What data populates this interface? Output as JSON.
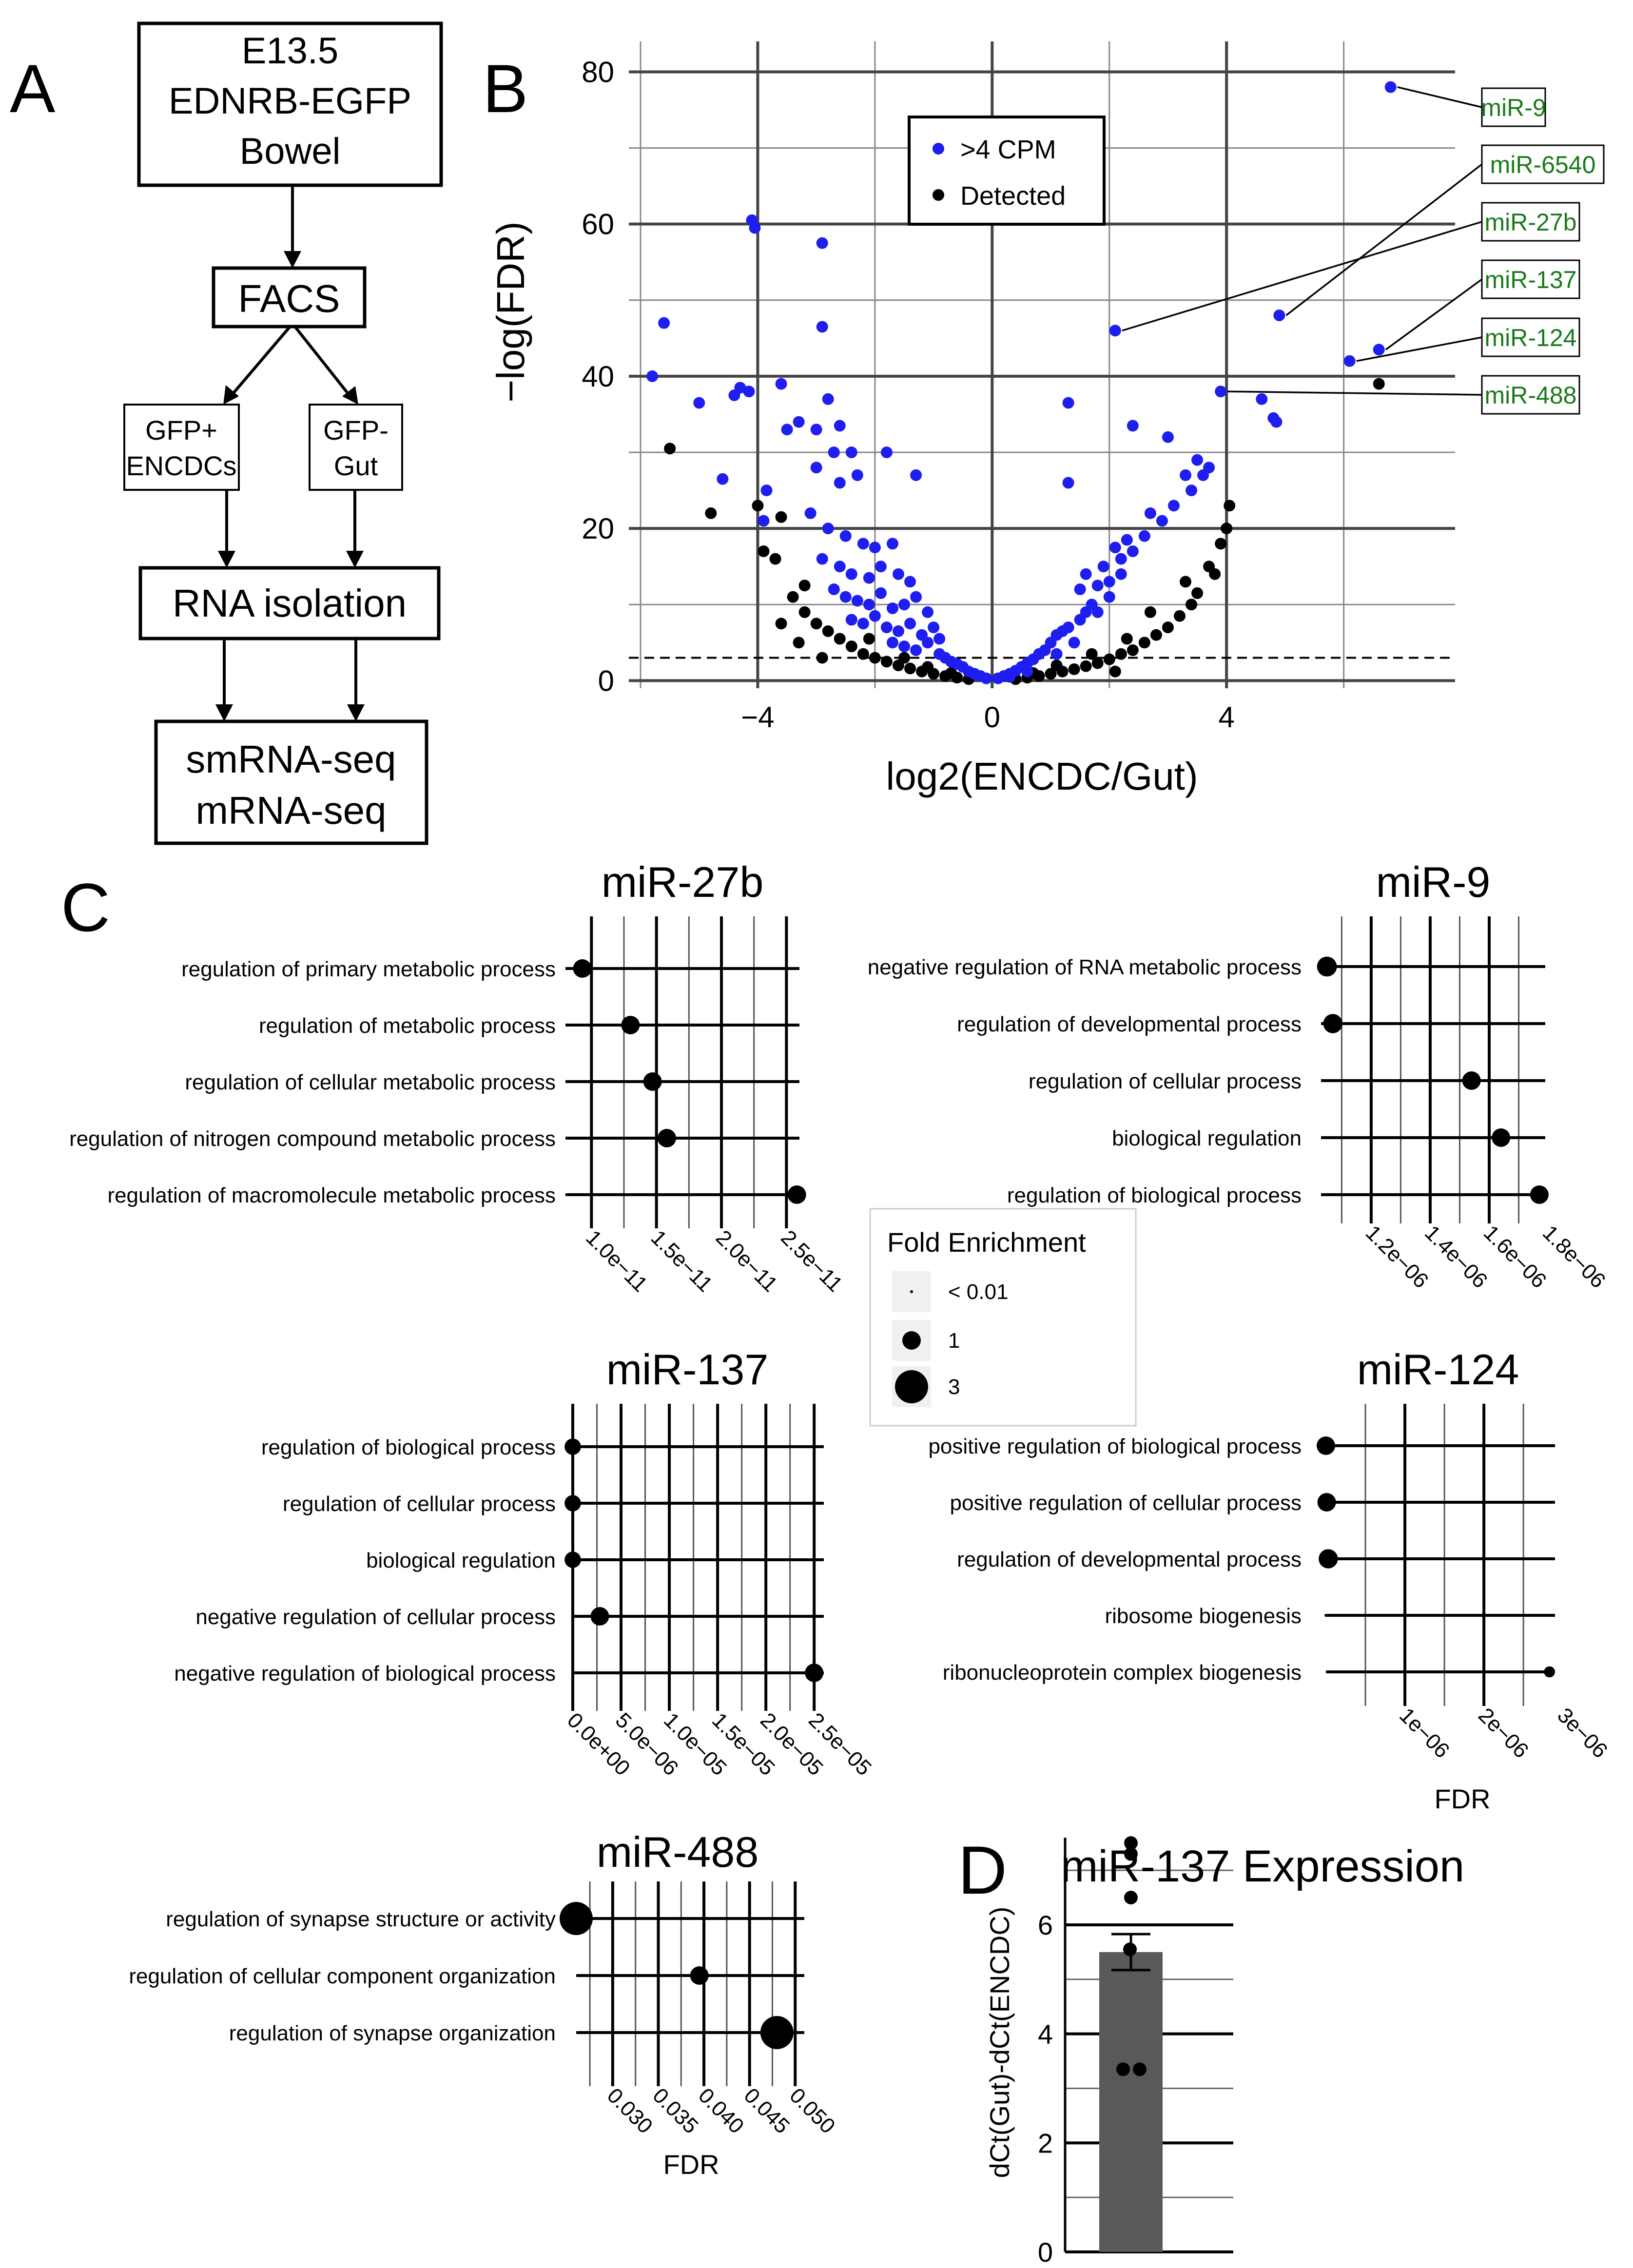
{
  "panels": {
    "a": "A",
    "b": "B",
    "c": "C",
    "d": "D"
  },
  "flowchart": {
    "start_lines": [
      "E13.5",
      "EDNRB-EGFP",
      "Bowel"
    ],
    "facs": "FACS",
    "gfp_pos_lines": [
      "GFP+",
      "ENCDCs"
    ],
    "gfp_neg_lines": [
      "GFP-",
      "Gut"
    ],
    "rna_isolation": "RNA isolation",
    "seq_lines": [
      "smRNA-seq",
      "mRNA-seq"
    ]
  },
  "colors": {
    "blue": "#1e1ef0",
    "black": "#000000",
    "green_label": "#1a7a1a",
    "bar_fill": "#595959"
  },
  "chart_data": [
    {
      "id": "volcano",
      "type": "scatter",
      "title": "",
      "xlabel": "log2(ENCDC/Gut)",
      "ylabel": "−log(FDR)",
      "xlim": [
        -6.2,
        7.9
      ],
      "ylim": [
        -1,
        84
      ],
      "xticks": [
        -4,
        0,
        4
      ],
      "xtick_labels": [
        "−4",
        "0",
        "4"
      ],
      "yticks": [
        0,
        20,
        40,
        60,
        80
      ],
      "ytick_labels": [
        "0",
        "20",
        "40",
        "60",
        "80"
      ],
      "threshold_y": 3,
      "legend": {
        "position": "top-center",
        "entries": [
          ">4 CPM",
          "Detected"
        ]
      },
      "labels": [
        {
          "text": "miR-9",
          "x": 6.8,
          "y": 78
        },
        {
          "text": "miR-6540",
          "x": 4.9,
          "y": 48
        },
        {
          "text": "miR-27b",
          "x": 2.1,
          "y": 46
        },
        {
          "text": "miR-137",
          "x": 6.6,
          "y": 43.5
        },
        {
          "text": "miR-124",
          "x": 6.1,
          "y": 42
        },
        {
          "text": "miR-488",
          "x": 3.9,
          "y": 38
        }
      ],
      "series": [
        {
          "name": ">4 CPM",
          "points": [
            [
              6.8,
              78
            ],
            [
              4.9,
              48
            ],
            [
              2.1,
              46
            ],
            [
              6.6,
              43.5
            ],
            [
              6.1,
              42
            ],
            [
              3.9,
              38
            ],
            [
              -4.1,
              60.5
            ],
            [
              -4.05,
              59.5
            ],
            [
              -2.9,
              57.5
            ],
            [
              -5.6,
              47
            ],
            [
              -2.9,
              46.5
            ],
            [
              -5.8,
              40
            ],
            [
              -4.3,
              38.5
            ],
            [
              -4.15,
              38
            ],
            [
              -4.4,
              37.5
            ],
            [
              -3.6,
              39
            ],
            [
              -5.0,
              36.5
            ],
            [
              -2.8,
              37
            ],
            [
              -3.3,
              34
            ],
            [
              -3.5,
              33
            ],
            [
              -2.6,
              33.5
            ],
            [
              -3.0,
              33
            ],
            [
              -2.7,
              30
            ],
            [
              -2.4,
              30
            ],
            [
              -1.8,
              30
            ],
            [
              -4.6,
              26.5
            ],
            [
              -3.85,
              25
            ],
            [
              -3.9,
              21
            ],
            [
              -3.0,
              28
            ],
            [
              -2.6,
              26
            ],
            [
              -2.3,
              27
            ],
            [
              -1.3,
              27
            ],
            [
              -3.1,
              22
            ],
            [
              -2.8,
              20
            ],
            [
              -2.5,
              19
            ],
            [
              -2.2,
              18
            ],
            [
              -2.0,
              17.5
            ],
            [
              -1.7,
              18
            ],
            [
              -2.9,
              16
            ],
            [
              -2.6,
              15
            ],
            [
              -2.4,
              14
            ],
            [
              -2.1,
              13.5
            ],
            [
              -1.9,
              15
            ],
            [
              -1.6,
              14
            ],
            [
              -1.4,
              13
            ],
            [
              -2.7,
              12
            ],
            [
              -2.5,
              11
            ],
            [
              -2.3,
              10.5
            ],
            [
              -2.1,
              10
            ],
            [
              -1.9,
              11.5
            ],
            [
              -1.7,
              9.5
            ],
            [
              -1.5,
              10
            ],
            [
              -1.3,
              11
            ],
            [
              -1.1,
              9
            ],
            [
              -2.4,
              8
            ],
            [
              -2.2,
              7.5
            ],
            [
              -2.0,
              8.5
            ],
            [
              -1.8,
              7
            ],
            [
              -1.6,
              6.5
            ],
            [
              -1.4,
              7.5
            ],
            [
              -1.2,
              6
            ],
            [
              -1.0,
              7
            ],
            [
              -0.9,
              5.5
            ],
            [
              -1.7,
              5
            ],
            [
              -1.5,
              4.5
            ],
            [
              -1.3,
              4
            ],
            [
              -1.1,
              5
            ],
            [
              -0.9,
              3.5
            ],
            [
              -0.8,
              3
            ],
            [
              -0.7,
              2.5
            ],
            [
              -0.6,
              2.2
            ],
            [
              -0.5,
              1.8
            ],
            [
              -0.4,
              1.2
            ],
            [
              -0.3,
              0.9
            ],
            [
              -0.2,
              0.6
            ],
            [
              -0.1,
              0.3
            ],
            [
              0.1,
              0.3
            ],
            [
              0.2,
              0.6
            ],
            [
              0.3,
              0.9
            ],
            [
              0.4,
              1.3
            ],
            [
              0.5,
              1.8
            ],
            [
              0.6,
              2.3
            ],
            [
              0.7,
              2.8
            ],
            [
              0.8,
              3.5
            ],
            [
              0.9,
              4
            ],
            [
              1.0,
              5
            ],
            [
              1.1,
              6
            ],
            [
              1.2,
              6.5
            ],
            [
              1.3,
              7
            ],
            [
              1.5,
              8
            ],
            [
              1.6,
              9
            ],
            [
              1.7,
              10
            ],
            [
              1.5,
              12
            ],
            [
              1.8,
              12.5
            ],
            [
              1.6,
              14
            ],
            [
              1.9,
              15
            ],
            [
              2.0,
              13
            ],
            [
              2.2,
              14
            ],
            [
              2.4,
              17
            ],
            [
              2.1,
              17.5
            ],
            [
              2.3,
              18.5
            ],
            [
              2.6,
              19
            ],
            [
              2.9,
              21
            ],
            [
              2.7,
              22
            ],
            [
              3.1,
              23
            ],
            [
              3.4,
              25
            ],
            [
              3.3,
              27
            ],
            [
              3.6,
              27
            ],
            [
              3.5,
              29
            ],
            [
              3.0,
              32
            ],
            [
              2.4,
              33.5
            ],
            [
              1.3,
              36.5
            ],
            [
              1.3,
              26
            ],
            [
              4.6,
              37
            ],
            [
              4.8,
              34.5
            ],
            [
              4.85,
              34
            ],
            [
              3.7,
              28
            ],
            [
              2.2,
              16
            ],
            [
              2.0,
              11
            ],
            [
              1.8,
              9
            ],
            [
              1.4,
              5
            ],
            [
              1.1,
              3.5
            ],
            [
              0.6,
              1.2
            ],
            [
              0.3,
              0.5
            ]
          ]
        },
        {
          "name": "Detected",
          "points": [
            [
              6.6,
              39
            ],
            [
              -5.5,
              30.5
            ],
            [
              -4.8,
              22
            ],
            [
              -4.0,
              23
            ],
            [
              -3.6,
              21.5
            ],
            [
              -3.9,
              17
            ],
            [
              -3.7,
              16
            ],
            [
              -3.2,
              12.5
            ],
            [
              -3.4,
              11
            ],
            [
              -3.2,
              9
            ],
            [
              -3.0,
              7.5
            ],
            [
              -2.8,
              6.5
            ],
            [
              -2.6,
              5.5
            ],
            [
              -2.4,
              4.5
            ],
            [
              -2.2,
              3.5
            ],
            [
              -2.0,
              3
            ],
            [
              -1.8,
              2.5
            ],
            [
              -1.6,
              2
            ],
            [
              -1.4,
              1.6
            ],
            [
              -1.2,
              1.2
            ],
            [
              -1.0,
              0.9
            ],
            [
              -0.8,
              0.6
            ],
            [
              -0.6,
              0.4
            ],
            [
              -0.4,
              0.2
            ],
            [
              0.4,
              0.2
            ],
            [
              0.6,
              0.4
            ],
            [
              0.8,
              0.6
            ],
            [
              1.0,
              0.9
            ],
            [
              1.2,
              1.2
            ],
            [
              1.4,
              1.5
            ],
            [
              1.6,
              1.9
            ],
            [
              1.8,
              2.3
            ],
            [
              2.0,
              2.8
            ],
            [
              2.2,
              3.5
            ],
            [
              2.4,
              4
            ],
            [
              2.6,
              5
            ],
            [
              2.8,
              6
            ],
            [
              3.0,
              7
            ],
            [
              3.2,
              8.5
            ],
            [
              3.4,
              10
            ],
            [
              3.5,
              11.5
            ],
            [
              3.7,
              15
            ],
            [
              3.9,
              18
            ],
            [
              4.0,
              20
            ],
            [
              4.05,
              23
            ],
            [
              3.8,
              14
            ],
            [
              3.3,
              13
            ],
            [
              2.7,
              9
            ],
            [
              2.3,
              5.5
            ],
            [
              2.1,
              1.2
            ],
            [
              1.7,
              3.5
            ],
            [
              -2.9,
              3
            ],
            [
              -3.3,
              5
            ],
            [
              -3.6,
              7.5
            ],
            [
              -2.1,
              5.5
            ],
            [
              -1.5,
              3
            ],
            [
              -1.1,
              1.8
            ],
            [
              -0.7,
              1
            ],
            [
              0.7,
              1
            ],
            [
              1.1,
              2
            ]
          ]
        }
      ]
    },
    {
      "id": "mir27b",
      "type": "dot",
      "title": "miR-27b",
      "xlabel": "",
      "xlim": [
        8e-12,
        2.6e-11
      ],
      "xticks": [
        1e-11,
        1.5e-11,
        2e-11,
        2.5e-11
      ],
      "xtick_labels": [
        "1.0e−11",
        "1.5e−11",
        "2.0e−11",
        "2.5e−11"
      ],
      "categories": [
        "regulation of primary metabolic process",
        "regulation of metabolic process",
        "regulation of cellular metabolic process",
        "regulation of nitrogen compound metabolic process",
        "regulation of macromolecule metabolic process"
      ],
      "values": [
        9.3e-12,
        1.3e-11,
        1.47e-11,
        1.58e-11,
        2.58e-11
      ],
      "fold_enrichment": [
        1,
        1,
        1,
        1,
        1
      ]
    },
    {
      "id": "mir9",
      "type": "dot",
      "title": "miR-9",
      "xlabel": "",
      "xlim": [
        1.03e-06,
        1.79e-06
      ],
      "xticks": [
        1.2e-06,
        1.4e-06,
        1.6e-06,
        1.8e-06
      ],
      "xtick_labels": [
        "1.2e−06",
        "1.4e−06",
        "1.6e−06",
        "1.8e−06"
      ],
      "categories": [
        "negative regulation of RNA metabolic process",
        "regulation of developmental process",
        "regulation of cellular process",
        "biological regulation",
        "regulation of biological process"
      ],
      "values": [
        1.05e-06,
        1.07e-06,
        1.54e-06,
        1.64e-06,
        1.77e-06
      ],
      "fold_enrichment": [
        1.2,
        1.1,
        1,
        1,
        1
      ]
    },
    {
      "id": "mir137",
      "type": "dot",
      "title": "miR-137",
      "xlabel": "",
      "xlim": [
        0,
        2.6e-05
      ],
      "xticks": [
        0,
        5e-06,
        1e-05,
        1.5e-05,
        2e-05,
        2.5e-05
      ],
      "xtick_labels": [
        "0.0e+00",
        "5.0e−06",
        "1.0e−05",
        "1.5e−05",
        "2.0e−05",
        "2.5e−05"
      ],
      "categories": [
        "regulation of biological process",
        "regulation of cellular process",
        "biological regulation",
        "negative regulation of cellular process",
        "negative regulation of biological process"
      ],
      "values": [
        0.0,
        0.0,
        0.0,
        2.8e-06,
        2.5e-05
      ],
      "fold_enrichment": [
        0.8,
        0.8,
        0.8,
        1,
        1
      ]
    },
    {
      "id": "mir124",
      "type": "dot",
      "title": "miR-124",
      "xlabel": "FDR",
      "xlim": [
        0,
        2.9e-06
      ],
      "xticks": [
        1e-06,
        2e-06,
        3e-06
      ],
      "xtick_labels": [
        "1e−06",
        "2e−06",
        "3e−06"
      ],
      "categories": [
        "positive regulation of biological process",
        "positive regulation of cellular process",
        "regulation of developmental process",
        "ribosome biogenesis",
        "ribonucleoprotein complex biogenesis"
      ],
      "values": [
        0.0,
        1e-08,
        3e-08,
        0.0,
        2.83e-06
      ],
      "fold_enrichment": [
        1,
        1,
        1.1,
        0.005,
        0.3
      ]
    },
    {
      "id": "mir488",
      "type": "dot",
      "title": "miR-488",
      "xlabel": "FDR",
      "xlim": [
        0.026,
        0.051
      ],
      "xticks": [
        0.03,
        0.035,
        0.04,
        0.045,
        0.05
      ],
      "xtick_labels": [
        "0.030",
        "0.035",
        "0.040",
        "0.045",
        "0.050"
      ],
      "categories": [
        "regulation of synapse structure or activity",
        "regulation of cellular component organization",
        "regulation of synapse organization"
      ],
      "values": [
        0.026,
        0.0395,
        0.048
      ],
      "fold_enrichment": [
        3,
        1,
        3
      ]
    },
    {
      "id": "fold_legend",
      "type": "legend",
      "title": "Fold Enrichment",
      "entries": [
        "< 0.01",
        "1",
        "3"
      ],
      "values": [
        0.005,
        1,
        3
      ]
    },
    {
      "id": "mir137_expr",
      "type": "bar",
      "title": "miR-137 Expression",
      "ylabel": "dCt(Gut)-dCt(ENCDC)",
      "ylim": [
        0,
        7.6
      ],
      "yticks": [
        0,
        2,
        4,
        6
      ],
      "ytick_labels": [
        "0",
        "2",
        "4",
        "6"
      ],
      "bar_mean": 5.5,
      "bar_sem": 0.33,
      "points": [
        7.5,
        7.3,
        6.5,
        5.55,
        3.35,
        3.35
      ]
    }
  ]
}
